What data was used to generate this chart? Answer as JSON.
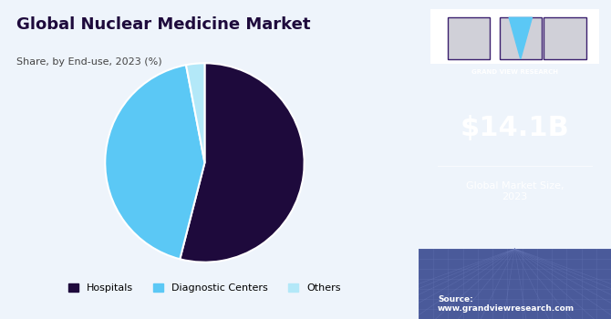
{
  "title": "Global Nuclear Medicine Market",
  "subtitle": "Share, by End-use, 2023 (%)",
  "slices": [
    54,
    43,
    3
  ],
  "labels": [
    "Hospitals",
    "Diagnostic Centers",
    "Others"
  ],
  "colors": [
    "#1e0a3c",
    "#5bc8f5",
    "#b3e8f8"
  ],
  "legend_colors": [
    "#1e0a3c",
    "#5bc8f5",
    "#b3e8f8"
  ],
  "start_angle": 90,
  "sidebar_bg": "#3b1f6e",
  "sidebar_bottom_bg": "#4a5a9a",
  "market_size": "$14.1B",
  "market_label": "Global Market Size,\n2023",
  "source_text": "Source:\nwww.grandviewresearch.com",
  "main_bg": "#eef4fb",
  "title_color": "#1e0a3c",
  "subtitle_color": "#444444"
}
